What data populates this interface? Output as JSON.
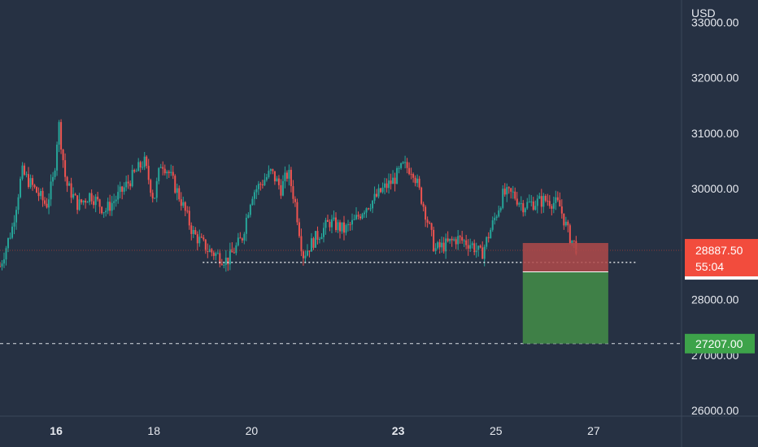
{
  "chart_data": {
    "type": "candlestick",
    "currency_label": "USD",
    "ylim": [
      25900,
      33400
    ],
    "y_ticks": [
      26000,
      27000,
      28000,
      29000,
      30000,
      31000,
      32000,
      33000
    ],
    "y_tick_labels": [
      "26000.00",
      "27000.00",
      "28000.00",
      "29000.00",
      "30000.00",
      "31000.00",
      "32000.00",
      "33000.00"
    ],
    "x_ticks": [
      {
        "label": "16",
        "day": 16,
        "bold": true
      },
      {
        "label": "18",
        "day": 18,
        "bold": false
      },
      {
        "label": "20",
        "day": 20,
        "bold": false
      },
      {
        "label": "23",
        "day": 23,
        "bold": true
      },
      {
        "label": "25",
        "day": 25,
        "bold": false
      },
      {
        "label": "27",
        "day": 27,
        "bold": false
      }
    ],
    "xlim_days": [
      14.85,
      28.8
    ],
    "price_path": [
      [
        14.85,
        28600
      ],
      [
        15.1,
        29300
      ],
      [
        15.3,
        30300
      ],
      [
        15.55,
        30000
      ],
      [
        15.8,
        29700
      ],
      [
        15.95,
        30200
      ],
      [
        16.05,
        31200
      ],
      [
        16.2,
        30100
      ],
      [
        16.45,
        29700
      ],
      [
        16.7,
        29900
      ],
      [
        17.0,
        29600
      ],
      [
        17.3,
        29900
      ],
      [
        17.55,
        30200
      ],
      [
        17.8,
        30500
      ],
      [
        18.0,
        29800
      ],
      [
        18.15,
        30500
      ],
      [
        18.3,
        30300
      ],
      [
        18.55,
        29800
      ],
      [
        18.8,
        29200
      ],
      [
        19.1,
        28900
      ],
      [
        19.5,
        28700
      ],
      [
        19.8,
        29100
      ],
      [
        20.0,
        29900
      ],
      [
        20.2,
        30100
      ],
      [
        20.4,
        30300
      ],
      [
        20.6,
        30000
      ],
      [
        20.75,
        30300
      ],
      [
        20.9,
        29700
      ],
      [
        21.05,
        28800
      ],
      [
        21.3,
        29100
      ],
      [
        21.6,
        29400
      ],
      [
        21.9,
        29250
      ],
      [
        22.1,
        29400
      ],
      [
        22.3,
        29650
      ],
      [
        22.5,
        29800
      ],
      [
        22.7,
        30000
      ],
      [
        22.9,
        30150
      ],
      [
        23.1,
        30400
      ],
      [
        23.3,
        30350
      ],
      [
        23.55,
        29600
      ],
      [
        23.75,
        28900
      ],
      [
        24.0,
        29000
      ],
      [
        24.2,
        29100
      ],
      [
        24.5,
        29000
      ],
      [
        24.7,
        28800
      ],
      [
        24.95,
        29400
      ],
      [
        25.15,
        29900
      ],
      [
        25.35,
        29900
      ],
      [
        25.55,
        29700
      ],
      [
        25.8,
        29750
      ],
      [
        26.05,
        29800
      ],
      [
        26.3,
        29700
      ],
      [
        26.5,
        29150
      ],
      [
        26.68,
        28887.5
      ]
    ],
    "support_level": 28670,
    "support_from_day": 19.0,
    "support_to_day": 27.9,
    "target_level": 27207.0,
    "position": {
      "from_day": 25.55,
      "to_day": 27.3,
      "entry": 28500,
      "stop": 29020,
      "target": 27207
    },
    "last_price_label": "28887.50",
    "countdown_label": "55:04",
    "target_label": "27207.00",
    "colors": {
      "background": "#263143",
      "up": "#26a69a",
      "down": "#ef5350",
      "stop_zone": "#b04a4a",
      "target_zone": "#3f8047",
      "badge_red": "#f24c3d",
      "badge_green": "#3da34a",
      "text": "#e6e9ef"
    }
  }
}
